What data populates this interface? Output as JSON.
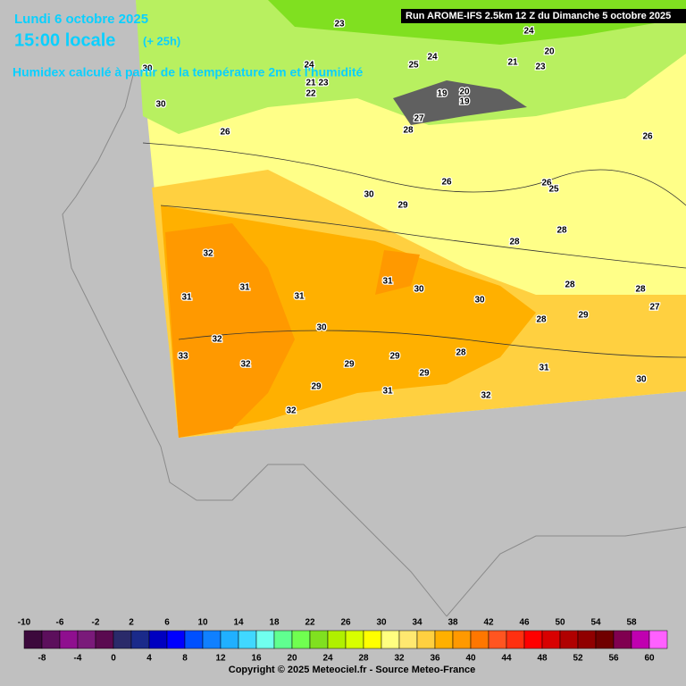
{
  "header": {
    "date": "Lundi 6 octobre 2025",
    "time": "15:00 locale",
    "lead": "(+ 25h)",
    "description": "Humidex calculé à partir de la température 2m et l'humidité",
    "run": "Run AROME-IFS 2.5km 12 Z du Dimanche 5 octobre 2025"
  },
  "map_labels": [
    23,
    24,
    20,
    24,
    24,
    21,
    23,
    25,
    21,
    23,
    22,
    30,
    30,
    26,
    27,
    28,
    19,
    20,
    19,
    26,
    30,
    29,
    26,
    26,
    25,
    28,
    28,
    32,
    31,
    31,
    31,
    31,
    30,
    30,
    28,
    28,
    27,
    28,
    29,
    30,
    32,
    33,
    32,
    29,
    29,
    28,
    31,
    29,
    30,
    29,
    31,
    32,
    32
  ],
  "legend": {
    "top_labels": [
      -10,
      -6,
      -2,
      2,
      6,
      10,
      14,
      18,
      22,
      26,
      30,
      34,
      38,
      42,
      46,
      50,
      54,
      58
    ],
    "bottom_labels": [
      -8,
      -4,
      0,
      4,
      8,
      12,
      16,
      20,
      24,
      28,
      32,
      36,
      40,
      44,
      48,
      52,
      56,
      60
    ],
    "colors": [
      "#3c093c",
      "#5c0f5c",
      "#8f0f8f",
      "#7a1a7a",
      "#5a0a50",
      "#2a2a6a",
      "#1a2a8a",
      "#0000c0",
      "#0000ff",
      "#0050ff",
      "#1080ff",
      "#20b0ff",
      "#40d8ff",
      "#70ffee",
      "#60ff90",
      "#70ff50",
      "#80e020",
      "#b0f000",
      "#d8ff00",
      "#ffff00",
      "#ffff80",
      "#ffe870",
      "#ffd040",
      "#ffb000",
      "#ff9900",
      "#ff7700",
      "#ff5520",
      "#ff3010",
      "#ff0000",
      "#d80000",
      "#b00000",
      "#900000",
      "#700000",
      "#800050",
      "#c000b0",
      "#ff60ff"
    ]
  },
  "copyright": "Copyright © 2025 Meteociel.fr - Source Meteo-France"
}
